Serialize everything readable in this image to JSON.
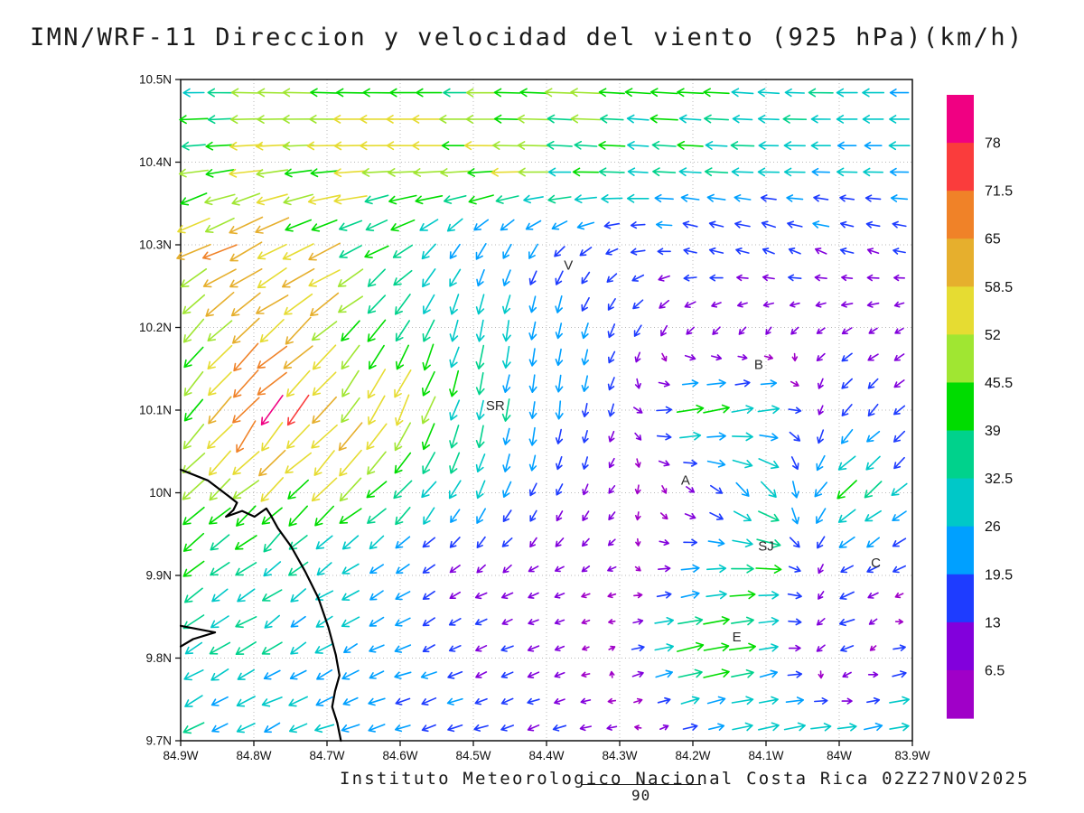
{
  "title": "IMN/WRF-11 Direccion y velocidad del viento (925 hPa)(km/h)",
  "footer": {
    "caption": "Instituto Meteorologico Nacional Costa Rica 02Z27NOV2025",
    "note": "90"
  },
  "chart_data": {
    "type": "vector_field",
    "title": "IMN/WRF-11 Direccion y velocidad del viento (925 hPa)(km/h)",
    "units": "km/h",
    "level": "925 hPa",
    "lon_w_max": 84.9,
    "lon_w_min": 83.9,
    "lat_max": 10.5,
    "lat_min": 9.7,
    "grid_dotted": true,
    "grid_color": "#b9b9b9",
    "x_axis": {
      "ticks": [
        "84.9W",
        "84.8W",
        "84.7W",
        "84.6W",
        "84.5W",
        "84.4W",
        "84.3W",
        "84.2W",
        "84.1W",
        "84W",
        "83.9W"
      ]
    },
    "y_axis": {
      "ticks": [
        "10.5N",
        "10.4N",
        "10.3N",
        "10.2N",
        "10.1N",
        "10N",
        "9.9N",
        "9.8N",
        "9.7N"
      ]
    },
    "colorbar": {
      "levels": [
        6.5,
        13,
        19.5,
        26,
        32.5,
        39,
        45.5,
        52,
        58.5,
        65,
        71.5,
        78
      ],
      "colors": [
        "#a000c8",
        "#8200dc",
        "#1e3cff",
        "#00a0ff",
        "#00c8c8",
        "#00d28c",
        "#00dc00",
        "#a0e632",
        "#e6dc32",
        "#e6af2d",
        "#f08228",
        "#fa3c3c",
        "#f00082"
      ],
      "labels_top_to_bottom": [
        "78",
        "71.5",
        "65",
        "58.5",
        "52",
        "45.5",
        "39",
        "32.5",
        "26",
        "19.5",
        "13",
        "6.5"
      ]
    },
    "wind_grid": {
      "lats": [
        10.5,
        10.4,
        10.3,
        10.2,
        10.1,
        10.0,
        9.9,
        9.8,
        9.7
      ],
      "lons_w": [
        84.9,
        84.8,
        84.7,
        84.6,
        84.5,
        84.4,
        84.3,
        84.2,
        84.1,
        84.0,
        83.9
      ],
      "u_kmh": [
        [
          -36,
          -40,
          -42,
          -44,
          -42,
          -42,
          -40,
          -38,
          -34,
          -32,
          -30
        ],
        [
          -42,
          -50,
          -52,
          -52,
          -50,
          -46,
          -38,
          -32,
          -28,
          -26,
          -25
        ],
        [
          -52,
          -58,
          -45,
          -25,
          -12,
          -10,
          -14,
          -16,
          -16,
          -14,
          -12
        ],
        [
          -34,
          -46,
          -40,
          -22,
          -6,
          -4,
          -8,
          -8,
          -6,
          -8,
          -8
        ],
        [
          -30,
          -48,
          -36,
          -25,
          -8,
          -2,
          -4,
          38,
          30,
          -14,
          -10
        ],
        [
          -32,
          -36,
          -36,
          -26,
          -10,
          -6,
          -4,
          6,
          26,
          -28,
          -16
        ],
        [
          -28,
          -26,
          -22,
          -16,
          -10,
          -8,
          -6,
          24,
          36,
          -16,
          -12
        ],
        [
          -28,
          -26,
          -22,
          -18,
          -13,
          -10,
          4,
          46,
          30,
          -20,
          22
        ],
        [
          -26,
          -25,
          -23,
          -20,
          -17,
          -14,
          -10,
          12,
          28,
          32,
          34
        ]
      ],
      "v_kmh": [
        [
          0,
          2,
          2,
          0,
          0,
          2,
          2,
          2,
          2,
          0,
          0
        ],
        [
          -4,
          -4,
          -2,
          0,
          0,
          2,
          2,
          2,
          0,
          0,
          0
        ],
        [
          -30,
          -28,
          -22,
          -18,
          -22,
          -14,
          -4,
          4,
          6,
          5,
          3
        ],
        [
          -34,
          -42,
          -36,
          -32,
          -30,
          -26,
          -14,
          -8,
          -5,
          -5,
          -4
        ],
        [
          -34,
          -58,
          -46,
          -45,
          -32,
          -26,
          -10,
          8,
          6,
          -14,
          -10
        ],
        [
          -28,
          -36,
          -36,
          -26,
          -22,
          -14,
          -6,
          -6,
          -22,
          -26,
          -16
        ],
        [
          -20,
          -18,
          -15,
          -10,
          -6,
          -4,
          -2,
          4,
          0,
          -8,
          -4
        ],
        [
          -18,
          -15,
          -12,
          -8,
          -6,
          -4,
          2,
          10,
          6,
          -8,
          6
        ],
        [
          -12,
          -10,
          -8,
          -6,
          -5,
          -4,
          -2,
          4,
          6,
          6,
          6
        ]
      ]
    },
    "city_labels": [
      {
        "label": "V",
        "lon_w": 84.37,
        "lat_n": 10.27
      },
      {
        "label": "SR",
        "lon_w": 84.47,
        "lat_n": 10.1
      },
      {
        "label": "B",
        "lon_w": 84.11,
        "lat_n": 10.15
      },
      {
        "label": "A",
        "lon_w": 84.21,
        "lat_n": 10.01
      },
      {
        "label": "SJ",
        "lon_w": 84.1,
        "lat_n": 9.93
      },
      {
        "label": "C",
        "lon_w": 83.95,
        "lat_n": 9.91
      },
      {
        "label": "E",
        "lon_w": 84.14,
        "lat_n": 9.82
      }
    ],
    "coastlines": [
      [
        [
          84.9,
          10.028
        ],
        [
          84.863,
          10.015
        ],
        [
          84.836,
          9.997
        ],
        [
          84.823,
          9.988
        ],
        [
          84.828,
          9.979
        ],
        [
          84.838,
          9.971
        ],
        [
          84.816,
          9.978
        ],
        [
          84.799,
          9.971
        ],
        [
          84.783,
          9.981
        ],
        [
          84.777,
          9.973
        ],
        [
          84.767,
          9.957
        ],
        [
          84.749,
          9.935
        ],
        [
          84.73,
          9.905
        ],
        [
          84.712,
          9.873
        ],
        [
          84.698,
          9.837
        ],
        [
          84.688,
          9.804
        ],
        [
          84.683,
          9.779
        ],
        [
          84.689,
          9.76
        ],
        [
          84.693,
          9.741
        ],
        [
          84.686,
          9.722
        ],
        [
          84.681,
          9.7
        ]
      ],
      [
        [
          84.9,
          9.839
        ],
        [
          84.853,
          9.831
        ],
        [
          84.883,
          9.823
        ],
        [
          84.9,
          9.814
        ]
      ]
    ]
  }
}
